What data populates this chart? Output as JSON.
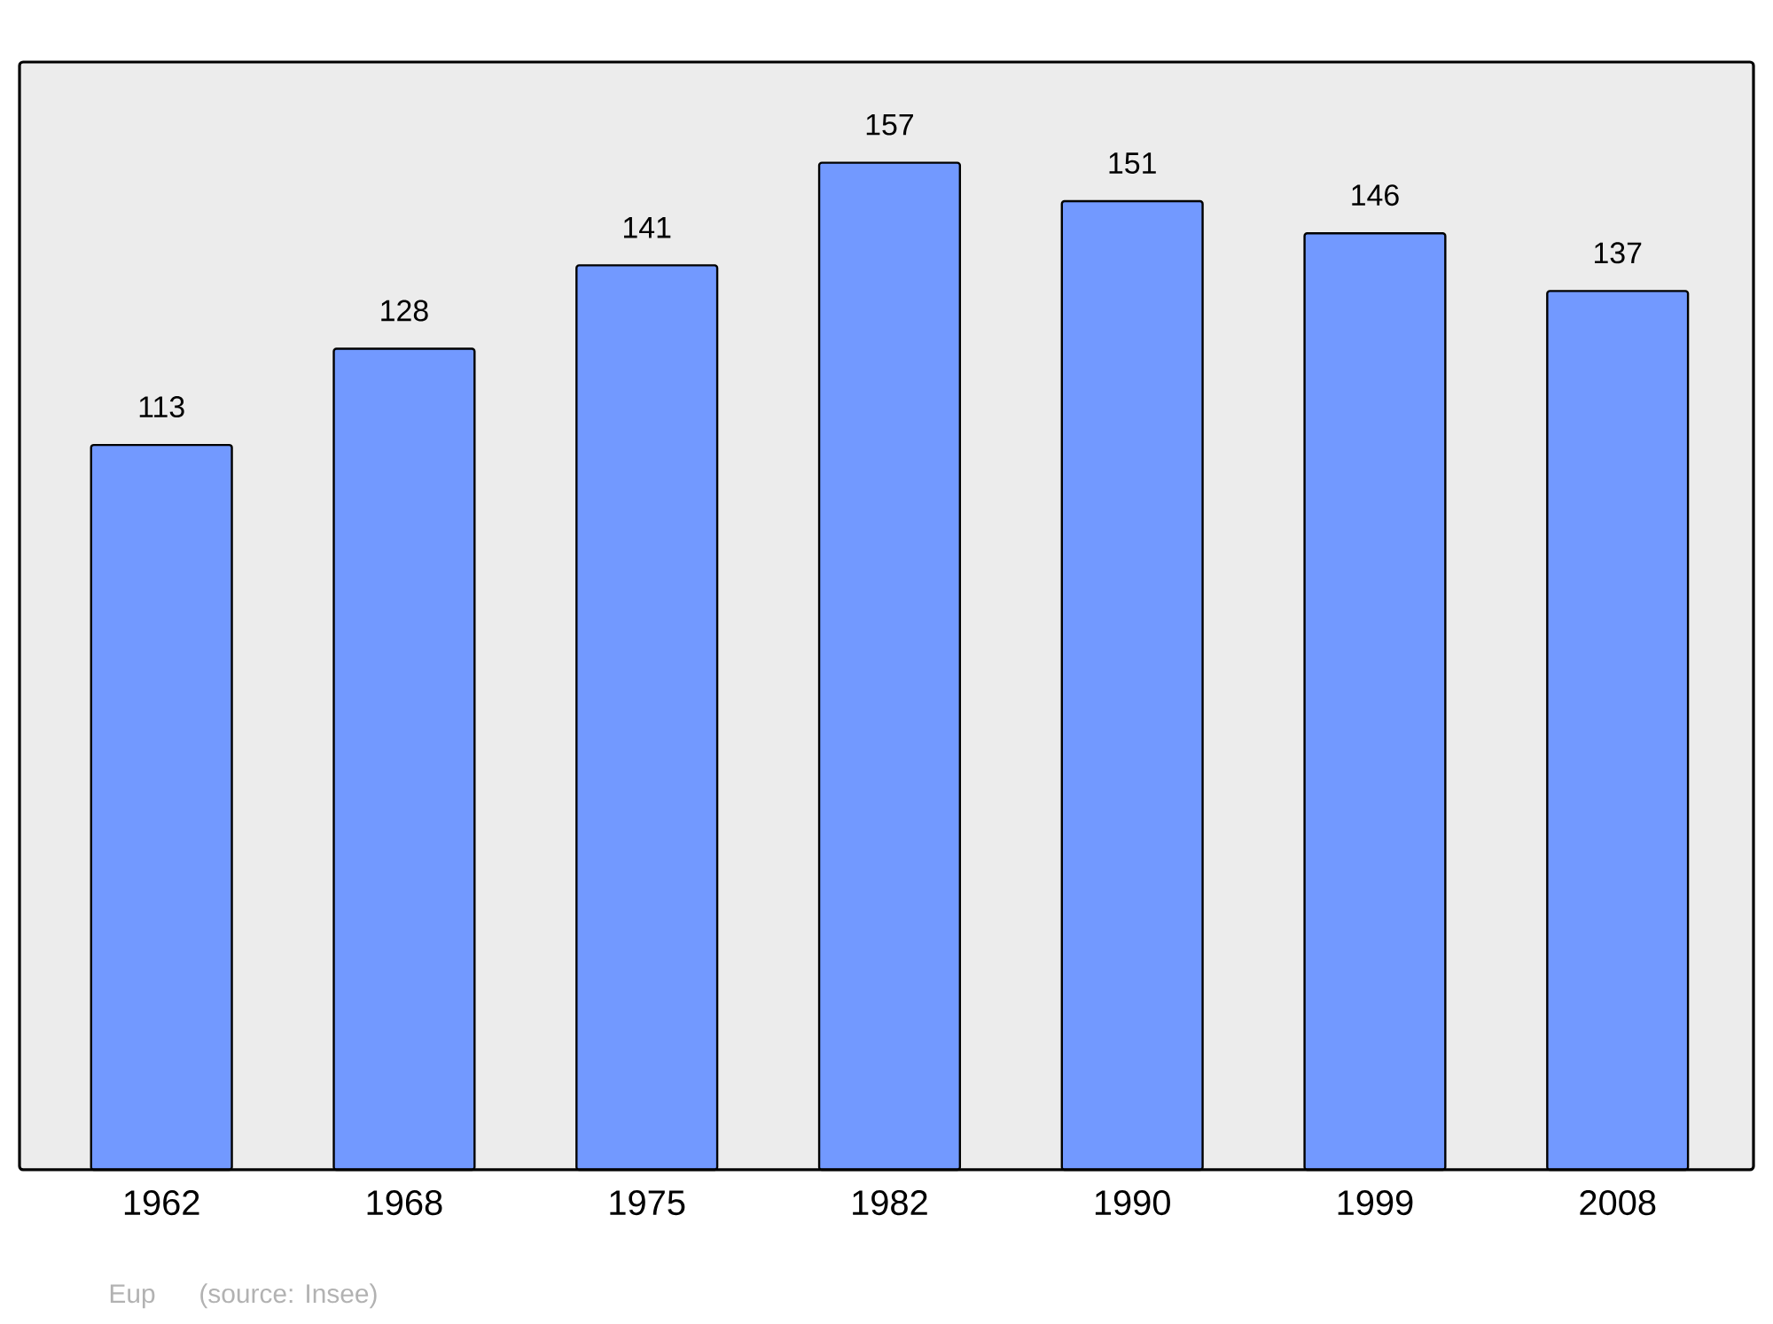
{
  "chart_data": {
    "type": "bar",
    "categories": [
      "1962",
      "1968",
      "1975",
      "1982",
      "1990",
      "1999",
      "2008"
    ],
    "values": [
      113,
      128,
      141,
      157,
      151,
      146,
      137
    ],
    "color": "#7299ff",
    "data_labels": true,
    "annotations": [
      "Eup",
      "(source: Insee)"
    ]
  }
}
